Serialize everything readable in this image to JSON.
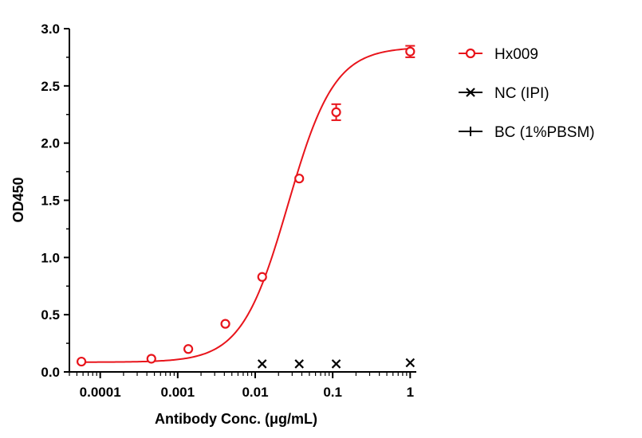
{
  "chart_data": {
    "type": "scatter",
    "xlabel": "Antibody Conc. (μg/mL)",
    "ylabel": "OD450",
    "xscale": "log",
    "xlim": [
      4e-05,
      1.2
    ],
    "ylim": [
      0,
      3.0
    ],
    "x_ticks": [
      0.0001,
      0.001,
      0.01,
      0.1,
      1
    ],
    "x_tick_labels": [
      "0.0001",
      "0.001",
      "0.01",
      "0.1",
      "1"
    ],
    "y_ticks": [
      0,
      0.5,
      1.0,
      1.5,
      2.0,
      2.5,
      3.0
    ],
    "y_tick_labels": [
      "0.0",
      "0.5",
      "1.0",
      "1.5",
      "2.0",
      "2.5",
      "3.0"
    ],
    "grid": false,
    "legend_position": "right",
    "series": [
      {
        "name": "Hx009",
        "color": "#e8141b",
        "marker": "open-circle",
        "fit": "4PL",
        "fit_params": {
          "bottom": 0.085,
          "top": 2.84,
          "ec50": 0.0265,
          "hill": 1.45
        },
        "x": [
          5.72e-05,
          0.000457,
          0.00137,
          0.00412,
          0.0123,
          0.037,
          0.111,
          1
        ],
        "y": [
          0.09,
          0.115,
          0.2,
          0.42,
          0.83,
          1.69,
          2.27,
          2.8
        ],
        "error": [
          0,
          0,
          0,
          0,
          0,
          0,
          0.07,
          0.05
        ]
      },
      {
        "name": "NC (IPI)",
        "color": "#000000",
        "marker": "x",
        "x": [
          0.0123,
          0.037,
          0.111,
          1
        ],
        "y": [
          0.07,
          0.07,
          0.07,
          0.08
        ]
      },
      {
        "name": "BC (1%PBSM)",
        "color": "#000000",
        "marker": "plus",
        "x": [],
        "y": []
      }
    ]
  }
}
